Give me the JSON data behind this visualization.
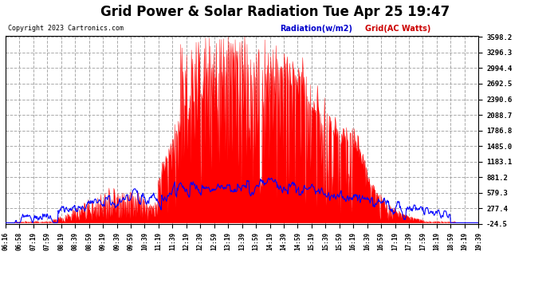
{
  "title": "Grid Power & Solar Radiation Tue Apr 25 19:47",
  "copyright": "Copyright 2023 Cartronics.com",
  "legend_radiation": "Radiation(w/m2)",
  "legend_grid": "Grid(AC Watts)",
  "bg_color": "#ffffff",
  "plot_bg_color": "#ffffff",
  "y_min": -24.5,
  "y_max": 3598.2,
  "y_ticks": [
    -24.5,
    277.4,
    579.3,
    881.2,
    1183.1,
    1485.0,
    1786.8,
    2088.7,
    2390.6,
    2692.5,
    2994.4,
    3296.3,
    3598.2
  ],
  "x_labels": [
    "06:16",
    "06:58",
    "07:19",
    "07:59",
    "08:19",
    "08:39",
    "08:59",
    "09:19",
    "09:39",
    "09:59",
    "10:39",
    "11:19",
    "11:39",
    "12:19",
    "12:39",
    "12:59",
    "13:19",
    "13:39",
    "13:59",
    "14:19",
    "14:39",
    "14:59",
    "15:19",
    "15:39",
    "15:59",
    "16:19",
    "16:39",
    "16:59",
    "17:19",
    "17:39",
    "17:59",
    "18:19",
    "18:59",
    "19:19",
    "19:39"
  ],
  "radiation_color": "#0000ff",
  "grid_ac_color": "#ff0000",
  "title_fontsize": 12,
  "copyright_color": "#000000",
  "radiation_label_color": "#0000cc",
  "grid_label_color": "#cc0000",
  "grid_line_color": "#aaaaaa"
}
